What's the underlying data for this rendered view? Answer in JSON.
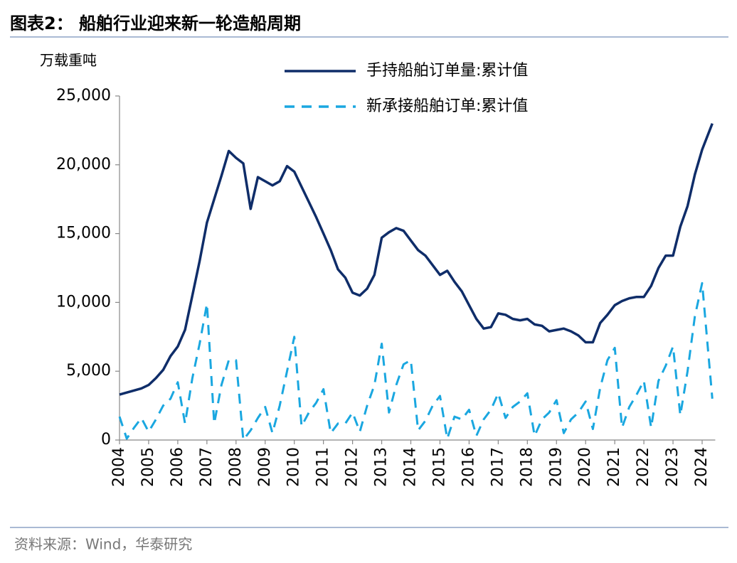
{
  "chart_data": {
    "type": "line",
    "title": "图表2： 船舶行业迎来新一轮造船周期",
    "y_label": "万载重吨",
    "source": "资料来源：Wind，华泰研究",
    "x": [
      2004,
      2004.25,
      2004.5,
      2004.75,
      2005,
      2005.25,
      2005.5,
      2005.75,
      2006,
      2006.25,
      2006.5,
      2006.75,
      2007,
      2007.25,
      2007.5,
      2007.75,
      2008,
      2008.25,
      2008.5,
      2008.75,
      2009,
      2009.25,
      2009.5,
      2009.75,
      2010,
      2010.25,
      2010.5,
      2010.75,
      2011,
      2011.25,
      2011.5,
      2011.75,
      2012,
      2012.25,
      2012.5,
      2012.75,
      2013,
      2013.25,
      2013.5,
      2013.75,
      2014,
      2014.25,
      2014.5,
      2014.75,
      2015,
      2015.25,
      2015.5,
      2015.75,
      2016,
      2016.25,
      2016.5,
      2016.75,
      2017,
      2017.25,
      2017.5,
      2017.75,
      2018,
      2018.25,
      2018.5,
      2018.75,
      2019,
      2019.25,
      2019.5,
      2019.75,
      2020,
      2020.25,
      2020.5,
      2020.75,
      2021,
      2021.25,
      2021.5,
      2021.75,
      2022,
      2022.25,
      2022.5,
      2022.75,
      2023,
      2023.25,
      2023.5,
      2023.75,
      2024,
      2024.35
    ],
    "series": [
      {
        "name": "手持船舶订单量:累计值",
        "color": "#0f2d69",
        "dash": false,
        "values": [
          3300,
          3450,
          3600,
          3750,
          4000,
          4500,
          5100,
          6100,
          6800,
          8000,
          10500,
          13000,
          15800,
          17500,
          19200,
          21000,
          20500,
          20100,
          16800,
          19100,
          18800,
          18500,
          18800,
          19900,
          19500,
          18400,
          17300,
          16200,
          15000,
          13800,
          12400,
          11800,
          10700,
          10500,
          11000,
          12000,
          14700,
          15100,
          15400,
          15200,
          14500,
          13800,
          13400,
          12700,
          12000,
          12300,
          11500,
          10800,
          9800,
          8800,
          8100,
          8200,
          9200,
          9100,
          8800,
          8700,
          8800,
          8400,
          8300,
          7900,
          8000,
          8100,
          7900,
          7600,
          7100,
          7100,
          8500,
          9100,
          9800,
          10100,
          10300,
          10400,
          10400,
          11200,
          12500,
          13400,
          13400,
          15500,
          17000,
          19300,
          21100,
          23000
        ]
      },
      {
        "name": "新承接船舶订单:累计值",
        "color": "#1aa7e0",
        "dash": true,
        "values": [
          1700,
          100,
          900,
          1600,
          600,
          1500,
          2500,
          3000,
          4200,
          1200,
          4500,
          7000,
          9900,
          1200,
          4000,
          5800,
          5800,
          0,
          700,
          1600,
          2400,
          500,
          2500,
          5000,
          7500,
          1000,
          2000,
          2700,
          3700,
          500,
          1200,
          1200,
          2000,
          600,
          2500,
          4000,
          7000,
          2000,
          4000,
          5500,
          5800,
          700,
          1400,
          2500,
          3200,
          100,
          1700,
          1500,
          2200,
          300,
          1500,
          2200,
          3400,
          1600,
          2400,
          2800,
          3400,
          300,
          1500,
          2000,
          2900,
          500,
          1500,
          2000,
          2800,
          800,
          3800,
          5800,
          6700,
          900,
          2400,
          3300,
          4300,
          900,
          4300,
          5400,
          6800,
          1800,
          5000,
          9000,
          11400,
          3000
        ]
      }
    ],
    "xlim": [
      2004,
      2024.45
    ],
    "xticks": [
      2004,
      2005,
      2006,
      2007,
      2008,
      2009,
      2010,
      2011,
      2012,
      2013,
      2014,
      2015,
      2016,
      2017,
      2018,
      2019,
      2020,
      2021,
      2022,
      2023,
      2024
    ],
    "ylim": [
      0,
      25000
    ],
    "yticks": [
      0,
      {
        "value": 5000,
        "label": "5,000"
      },
      {
        "value": 10000,
        "label": "10,000"
      },
      {
        "value": 15000,
        "label": "15,000"
      },
      {
        "value": 20000,
        "label": "20,000"
      },
      {
        "value": 25000,
        "label": "25,000"
      }
    ],
    "grid": false,
    "legend": "top"
  }
}
